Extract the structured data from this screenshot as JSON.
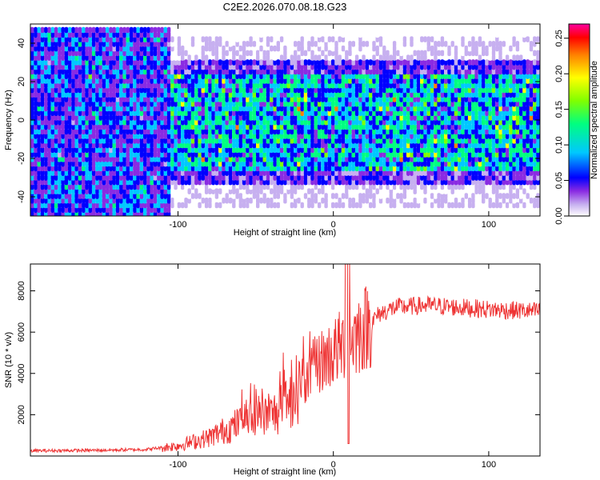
{
  "title": "C2E2.2026.070.08.18.G23",
  "chart_data": [
    {
      "type": "heatmap",
      "xlabel": "Height of straight line (km)",
      "ylabel": "Frequency (Hz)",
      "xlim": [
        -195,
        133
      ],
      "ylim": [
        -50,
        50
      ],
      "xticks": [
        -100,
        0,
        100
      ],
      "yticks": [
        -40,
        -20,
        0,
        20,
        40
      ],
      "colorbar": {
        "label": "Normalized spectral amplitude",
        "range": [
          0.0,
          0.27
        ],
        "ticks": [
          "0.00",
          "0.05",
          "0.10",
          "0.15",
          "0.20",
          "0.25"
        ],
        "colormap": [
          "#ffffff",
          "#c7b0f0",
          "#8a2be2",
          "#0000ff",
          "#00c8ff",
          "#00ff80",
          "#80ff00",
          "#ffff00",
          "#ff8000",
          "#ff0000",
          "#ff00a0"
        ]
      },
      "description_bands": {
        "dense_region_x": [
          -105,
          133
        ],
        "core_band_hz": [
          -25,
          25
        ],
        "outer_band_hz": [
          -45,
          45
        ]
      }
    },
    {
      "type": "line",
      "xlabel": "Height of straight line (km)",
      "ylabel": "SNR (10 * v/v)",
      "xlim": [
        -195,
        133
      ],
      "ylim": [
        0,
        9300
      ],
      "xticks": [
        -100,
        0,
        100
      ],
      "yticks": [
        2000,
        4000,
        6000,
        8000
      ],
      "color": "#ee3333",
      "series_profile": {
        "x": [
          -195,
          -150,
          -120,
          -100,
          -80,
          -60,
          -40,
          -30,
          -20,
          -10,
          0,
          10,
          20,
          30,
          40,
          60,
          80,
          100,
          133
        ],
        "y": [
          250,
          280,
          320,
          500,
          900,
          1600,
          2000,
          2400,
          3500,
          4500,
          5000,
          5600,
          6200,
          6900,
          7200,
          7300,
          7200,
          7100,
          7000
        ]
      },
      "peak": {
        "x": 9,
        "y": 9300
      },
      "dip": {
        "x": 9,
        "y": 600
      }
    }
  ]
}
